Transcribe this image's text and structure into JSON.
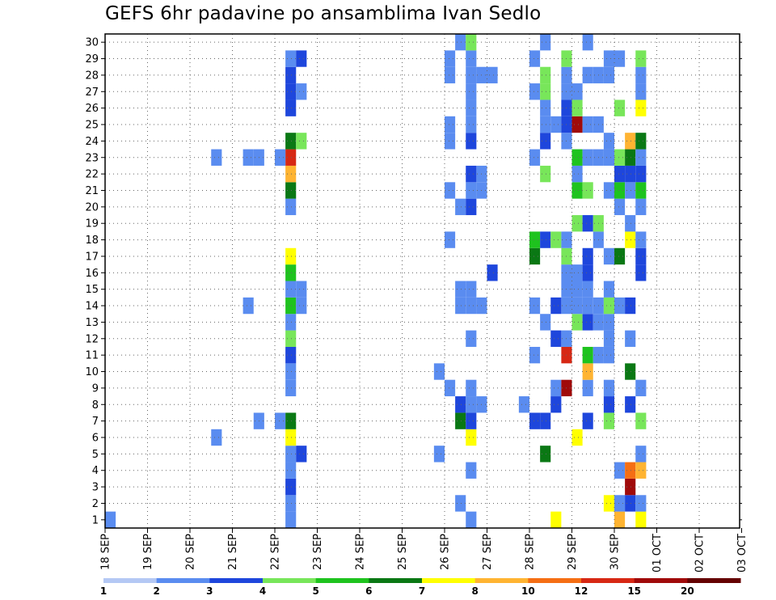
{
  "chart_data": {
    "type": "heatmap",
    "title": "GEFS 6hr padavine po ansamblima Ivan Sedlo",
    "xlabel": "",
    "ylabel": "",
    "x_tick_labels": [
      "18 SEP",
      "19 SEP",
      "20 SEP",
      "21 SEP",
      "22 SEP",
      "23 SEP",
      "24 SEP",
      "25 SEP",
      "26 SEP",
      "27 SEP",
      "28 SEP",
      "29 SEP",
      "30 SEP",
      "01 OCT",
      "02 OCT",
      "03 OCT"
    ],
    "y_members": [
      1,
      2,
      3,
      4,
      5,
      6,
      7,
      8,
      9,
      10,
      11,
      12,
      13,
      14,
      15,
      16,
      17,
      18,
      19,
      20,
      21,
      22,
      23,
      24,
      25,
      26,
      27,
      28,
      29,
      30
    ],
    "y_tick_labels": [
      "1",
      "2",
      "3",
      "4",
      "5",
      "6",
      "7",
      "8",
      "9",
      "10",
      "11",
      "12",
      "13",
      "14",
      "15",
      "16",
      "17",
      "18",
      "19",
      "20",
      "21",
      "22",
      "23",
      "24",
      "25",
      "26",
      "27",
      "28",
      "29",
      "30"
    ],
    "x_note": "x = 6-hour step index after 18 SEP 00 UTC (4 steps per day, 61 steps)",
    "grid": true,
    "colorbar": {
      "tick_labels": [
        "1",
        "2",
        "3",
        "4",
        "5",
        "6",
        "7",
        "8",
        "10",
        "12",
        "15",
        "20"
      ],
      "colors": [
        "#b4c8f4",
        "#5a8cf0",
        "#1e46dc",
        "#78e65a",
        "#1ec31e",
        "#0a7814",
        "#ffff00",
        "#ffb432",
        "#f56e14",
        "#d72814",
        "#a00a0a",
        "#640000"
      ]
    },
    "cells": [
      [
        0,
        0,
        1
      ],
      [
        17,
        0,
        1
      ],
      [
        17,
        1,
        1
      ],
      [
        17,
        2,
        2
      ],
      [
        17,
        3,
        1
      ],
      [
        17,
        4,
        1
      ],
      [
        17,
        5,
        6
      ],
      [
        17,
        6,
        5
      ],
      [
        17,
        8,
        1
      ],
      [
        17,
        9,
        1
      ],
      [
        17,
        10,
        2
      ],
      [
        17,
        11,
        3
      ],
      [
        17,
        12,
        1
      ],
      [
        17,
        13,
        4
      ],
      [
        17,
        14,
        1
      ],
      [
        17,
        15,
        4
      ],
      [
        17,
        16,
        6
      ],
      [
        17,
        19,
        1
      ],
      [
        17,
        20,
        5
      ],
      [
        17,
        21,
        7
      ],
      [
        17,
        22,
        9
      ],
      [
        17,
        23,
        5
      ],
      [
        17,
        25,
        2
      ],
      [
        17,
        26,
        2
      ],
      [
        17,
        27,
        2
      ],
      [
        17,
        28,
        1
      ],
      [
        18,
        4,
        2
      ],
      [
        18,
        13,
        1
      ],
      [
        18,
        14,
        1
      ],
      [
        18,
        23,
        3
      ],
      [
        18,
        26,
        1
      ],
      [
        18,
        28,
        2
      ],
      [
        16,
        6,
        1
      ],
      [
        16,
        22,
        1
      ],
      [
        10,
        5,
        1
      ],
      [
        10,
        22,
        1
      ],
      [
        13,
        13,
        1
      ],
      [
        13,
        22,
        1
      ],
      [
        14,
        22,
        1
      ],
      [
        14,
        6,
        1
      ],
      [
        31,
        4,
        1
      ],
      [
        31,
        9,
        1
      ],
      [
        32,
        8,
        1
      ],
      [
        32,
        17,
        1
      ],
      [
        32,
        20,
        1
      ],
      [
        32,
        23,
        1
      ],
      [
        32,
        24,
        1
      ],
      [
        32,
        27,
        1
      ],
      [
        32,
        28,
        1
      ],
      [
        33,
        1,
        1
      ],
      [
        33,
        6,
        5
      ],
      [
        33,
        7,
        2
      ],
      [
        33,
        13,
        1
      ],
      [
        33,
        14,
        1
      ],
      [
        33,
        19,
        1
      ],
      [
        33,
        29,
        1
      ],
      [
        34,
        0,
        1
      ],
      [
        34,
        3,
        1
      ],
      [
        34,
        5,
        6
      ],
      [
        34,
        6,
        2
      ],
      [
        34,
        7,
        1
      ],
      [
        34,
        8,
        1
      ],
      [
        34,
        11,
        1
      ],
      [
        34,
        13,
        1
      ],
      [
        34,
        14,
        1
      ],
      [
        34,
        19,
        2
      ],
      [
        34,
        20,
        1
      ],
      [
        34,
        21,
        2
      ],
      [
        34,
        23,
        2
      ],
      [
        34,
        24,
        1
      ],
      [
        34,
        25,
        1
      ],
      [
        34,
        26,
        1
      ],
      [
        34,
        27,
        1
      ],
      [
        34,
        28,
        1
      ],
      [
        34,
        29,
        3
      ],
      [
        35,
        7,
        1
      ],
      [
        35,
        13,
        1
      ],
      [
        35,
        20,
        1
      ],
      [
        35,
        21,
        1
      ],
      [
        35,
        27,
        1
      ],
      [
        36,
        15,
        2
      ],
      [
        36,
        27,
        1
      ],
      [
        39,
        7,
        1
      ],
      [
        40,
        6,
        2
      ],
      [
        40,
        10,
        1
      ],
      [
        40,
        13,
        1
      ],
      [
        40,
        16,
        5
      ],
      [
        40,
        17,
        4
      ],
      [
        40,
        22,
        1
      ],
      [
        40,
        26,
        1
      ],
      [
        40,
        28,
        1
      ],
      [
        41,
        4,
        5
      ],
      [
        41,
        6,
        2
      ],
      [
        41,
        12,
        1
      ],
      [
        41,
        17,
        2
      ],
      [
        41,
        21,
        3
      ],
      [
        41,
        23,
        2
      ],
      [
        41,
        24,
        1
      ],
      [
        41,
        25,
        1
      ],
      [
        41,
        26,
        3
      ],
      [
        41,
        27,
        3
      ],
      [
        41,
        29,
        1
      ],
      [
        42,
        0,
        6
      ],
      [
        42,
        7,
        2
      ],
      [
        42,
        8,
        1
      ],
      [
        42,
        11,
        2
      ],
      [
        42,
        13,
        2
      ],
      [
        42,
        17,
        3
      ],
      [
        42,
        24,
        1
      ],
      [
        43,
        8,
        10
      ],
      [
        43,
        10,
        9
      ],
      [
        43,
        11,
        1
      ],
      [
        43,
        13,
        1
      ],
      [
        43,
        14,
        1
      ],
      [
        43,
        15,
        1
      ],
      [
        43,
        16,
        3
      ],
      [
        43,
        17,
        1
      ],
      [
        43,
        23,
        1
      ],
      [
        43,
        24,
        2
      ],
      [
        43,
        25,
        2
      ],
      [
        43,
        26,
        1
      ],
      [
        43,
        27,
        1
      ],
      [
        43,
        28,
        3
      ],
      [
        44,
        5,
        6
      ],
      [
        44,
        12,
        3
      ],
      [
        44,
        13,
        1
      ],
      [
        44,
        14,
        1
      ],
      [
        44,
        15,
        1
      ],
      [
        44,
        18,
        3
      ],
      [
        44,
        20,
        4
      ],
      [
        44,
        21,
        1
      ],
      [
        44,
        22,
        4
      ],
      [
        44,
        24,
        10
      ],
      [
        44,
        25,
        3
      ],
      [
        44,
        26,
        1
      ],
      [
        45,
        6,
        2
      ],
      [
        45,
        8,
        1
      ],
      [
        45,
        9,
        7
      ],
      [
        45,
        10,
        4
      ],
      [
        45,
        12,
        2
      ],
      [
        45,
        13,
        1
      ],
      [
        45,
        14,
        1
      ],
      [
        45,
        15,
        2
      ],
      [
        45,
        16,
        2
      ],
      [
        45,
        18,
        2
      ],
      [
        45,
        20,
        3
      ],
      [
        45,
        22,
        1
      ],
      [
        45,
        24,
        1
      ],
      [
        45,
        27,
        1
      ],
      [
        45,
        29,
        1
      ],
      [
        46,
        10,
        1
      ],
      [
        46,
        12,
        1
      ],
      [
        46,
        13,
        1
      ],
      [
        46,
        17,
        1
      ],
      [
        46,
        18,
        3
      ],
      [
        46,
        22,
        1
      ],
      [
        46,
        24,
        1
      ],
      [
        46,
        27,
        1
      ],
      [
        47,
        1,
        6
      ],
      [
        47,
        6,
        3
      ],
      [
        47,
        7,
        2
      ],
      [
        47,
        8,
        1
      ],
      [
        47,
        10,
        1
      ],
      [
        47,
        11,
        1
      ],
      [
        47,
        12,
        1
      ],
      [
        47,
        13,
        3
      ],
      [
        47,
        14,
        1
      ],
      [
        47,
        16,
        1
      ],
      [
        47,
        20,
        1
      ],
      [
        47,
        22,
        1
      ],
      [
        47,
        23,
        1
      ],
      [
        47,
        27,
        1
      ],
      [
        47,
        28,
        1
      ],
      [
        48,
        0,
        7
      ],
      [
        48,
        1,
        1
      ],
      [
        48,
        3,
        1
      ],
      [
        48,
        13,
        1
      ],
      [
        48,
        16,
        5
      ],
      [
        48,
        19,
        1
      ],
      [
        48,
        20,
        4
      ],
      [
        48,
        21,
        2
      ],
      [
        48,
        22,
        3
      ],
      [
        48,
        25,
        3
      ],
      [
        48,
        28,
        1
      ],
      [
        49,
        1,
        2
      ],
      [
        49,
        2,
        10
      ],
      [
        49,
        3,
        8
      ],
      [
        49,
        7,
        2
      ],
      [
        49,
        9,
        5
      ],
      [
        49,
        11,
        1
      ],
      [
        49,
        13,
        2
      ],
      [
        49,
        17,
        6
      ],
      [
        49,
        18,
        1
      ],
      [
        49,
        20,
        1
      ],
      [
        49,
        21,
        2
      ],
      [
        49,
        22,
        5
      ],
      [
        49,
        23,
        7
      ],
      [
        50,
        0,
        6
      ],
      [
        50,
        1,
        1
      ],
      [
        50,
        3,
        7
      ],
      [
        50,
        4,
        1
      ],
      [
        50,
        6,
        3
      ],
      [
        50,
        8,
        1
      ],
      [
        50,
        15,
        2
      ],
      [
        50,
        16,
        2
      ],
      [
        50,
        17,
        1
      ],
      [
        50,
        19,
        1
      ],
      [
        50,
        20,
        4
      ],
      [
        50,
        21,
        2
      ],
      [
        50,
        22,
        1
      ],
      [
        50,
        23,
        5
      ],
      [
        50,
        25,
        6
      ],
      [
        50,
        26,
        1
      ],
      [
        50,
        27,
        1
      ],
      [
        50,
        28,
        3
      ]
    ]
  }
}
